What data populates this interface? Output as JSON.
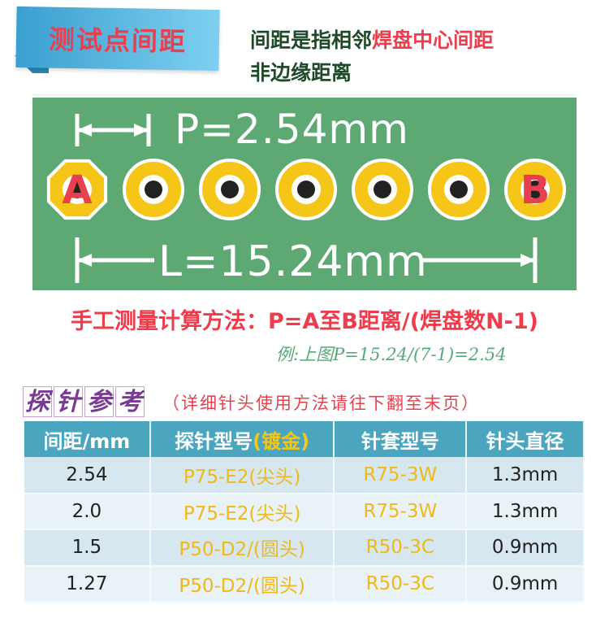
{
  "banner": {
    "title": "测试点间距"
  },
  "description": {
    "line1_a": "间距是指相邻",
    "line1_b": "焊盘中心间距",
    "line2": "非边缘距离"
  },
  "diagram": {
    "pitch_label": "P=2.54mm",
    "length_label": "L=15.24mm",
    "pad_count": 7,
    "pad_a": "A",
    "pad_b": "B",
    "board_color": "#5ea874",
    "pad_color": "#f5c518"
  },
  "formula": "手工测量计算方法：P=A至B距离/(焊盘数N-1)",
  "example": "例:上图P=15.24/(7-1)=2.54",
  "reference": {
    "title_chars": [
      "探",
      "针",
      "参",
      "考"
    ],
    "note": "（详细针头使用方法请往下翻至末页）"
  },
  "table": {
    "headers": [
      "间距/mm",
      "探针型号",
      "(镀金)",
      "针套型号",
      "针头直径"
    ],
    "rows": [
      [
        "2.54",
        "P75-E2(尖头)",
        "R75-3W",
        "1.3mm"
      ],
      [
        "2.0",
        "P75-E2(尖头)",
        "R75-3W",
        "1.3mm"
      ],
      [
        "1.5",
        "P50-D2/(圆头)",
        "R50-3C",
        "0.9mm"
      ],
      [
        "1.27",
        "P50-D2/(圆头)",
        "R50-3C",
        "0.9mm"
      ]
    ]
  }
}
